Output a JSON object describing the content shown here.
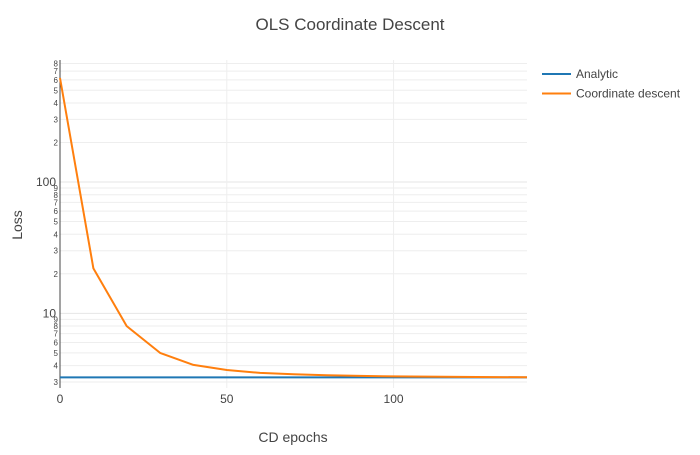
{
  "chart_data": {
    "type": "line",
    "title": "OLS Coordinate Descent",
    "xlabel": "CD epochs",
    "ylabel": "Loss",
    "xlim": [
      0,
      140
    ],
    "ylim": [
      2.7,
      850
    ],
    "yscale": "log",
    "grid": true,
    "legend_position": "top-right",
    "x_ticks": [
      0,
      50,
      100
    ],
    "y_major_ticks": [
      {
        "value": 10,
        "label": "10"
      },
      {
        "value": 100,
        "label": "100"
      }
    ],
    "y_minor_ticks": [
      {
        "value": 3,
        "label": "3"
      },
      {
        "value": 4,
        "label": "4"
      },
      {
        "value": 5,
        "label": "5"
      },
      {
        "value": 6,
        "label": "6"
      },
      {
        "value": 7,
        "label": "7"
      },
      {
        "value": 8,
        "label": "8"
      },
      {
        "value": 9,
        "label": "9"
      },
      {
        "value": 20,
        "label": "2"
      },
      {
        "value": 30,
        "label": "3"
      },
      {
        "value": 40,
        "label": "4"
      },
      {
        "value": 50,
        "label": "5"
      },
      {
        "value": 60,
        "label": "6"
      },
      {
        "value": 70,
        "label": "7"
      },
      {
        "value": 80,
        "label": "8"
      },
      {
        "value": 90,
        "label": "9"
      },
      {
        "value": 200,
        "label": "2"
      },
      {
        "value": 300,
        "label": "3"
      },
      {
        "value": 400,
        "label": "4"
      },
      {
        "value": 500,
        "label": "5"
      },
      {
        "value": 600,
        "label": "6"
      },
      {
        "value": 700,
        "label": "7"
      },
      {
        "value": 800,
        "label": "8"
      }
    ],
    "series": [
      {
        "name": "Analytic",
        "color": "#1f77b4",
        "x": [
          0,
          140
        ],
        "y": [
          3.25,
          3.25
        ]
      },
      {
        "name": "Coordinate descent",
        "color": "#ff7f0e",
        "x": [
          0,
          10,
          20,
          30,
          40,
          50,
          60,
          70,
          80,
          90,
          100,
          110,
          120,
          130,
          140
        ],
        "y": [
          620,
          22,
          8,
          5,
          4.05,
          3.7,
          3.52,
          3.44,
          3.38,
          3.34,
          3.31,
          3.3,
          3.28,
          3.27,
          3.26
        ]
      }
    ]
  }
}
